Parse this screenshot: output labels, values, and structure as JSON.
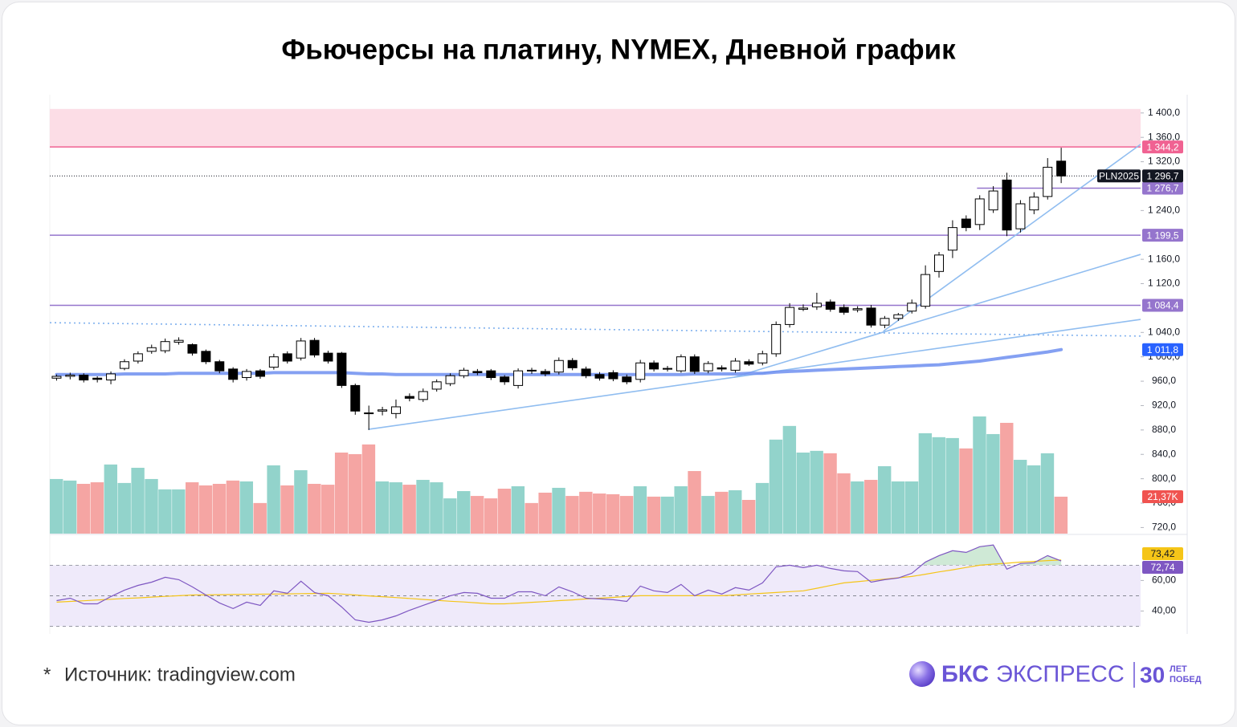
{
  "chart_data": {
    "type": "candlestick",
    "title": "Фьючерсы на платину, NYMEX, Дневной график",
    "xlim": [
      -0.5,
      79.85
    ],
    "ylim": [
      710,
      1430
    ],
    "yticks": [
      {
        "value": 720,
        "label": "720,0"
      },
      {
        "value": 760,
        "label": "760,0"
      },
      {
        "value": 800,
        "label": "800,0"
      },
      {
        "value": 840,
        "label": "840,0"
      },
      {
        "value": 880,
        "label": "880,0"
      },
      {
        "value": 920,
        "label": "920,0"
      },
      {
        "value": 960,
        "label": "960,0"
      },
      {
        "value": 1000,
        "label": "1 000,0"
      },
      {
        "value": 1040,
        "label": "1 040,0"
      },
      {
        "value": 1120,
        "label": "1 120,0"
      },
      {
        "value": 1160,
        "label": "1 160,0"
      },
      {
        "value": 1240,
        "label": "1 240,0"
      },
      {
        "value": 1320,
        "label": "1 320,0"
      },
      {
        "value": 1360,
        "label": "1 360,0"
      },
      {
        "value": 1400,
        "label": "1 400,0"
      }
    ],
    "up_color": "#ffffff",
    "down_color": "#000000",
    "open": [
      965,
      968,
      970,
      965,
      962,
      981,
      993,
      1009,
      1010,
      1024,
      1020,
      1009,
      992,
      980,
      966,
      977,
      983,
      1005,
      998,
      1027,
      1006,
      1006,
      953,
      908,
      911,
      907,
      935,
      930,
      947,
      956,
      969,
      976,
      977,
      967,
      953,
      978,
      976,
      975,
      994,
      980,
      971,
      974,
      967,
      963,
      990,
      980,
      977,
      1000,
      977,
      982,
      978,
      992,
      990,
      1005,
      1053,
      1078,
      1082,
      1090,
      1081,
      1077,
      1080,
      1052,
      1063,
      1075,
      1083,
      1140,
      1175,
      1226,
      1217,
      1241,
      1290,
      1210,
      1241,
      1263,
      1321
    ],
    "high": [
      971,
      974,
      973,
      968,
      976,
      996,
      1009,
      1020,
      1030,
      1032,
      1022,
      1012,
      995,
      983,
      980,
      980,
      1005,
      1009,
      1031,
      1031,
      1010,
      1008,
      956,
      920,
      918,
      930,
      940,
      948,
      963,
      973,
      982,
      980,
      980,
      970,
      981,
      982,
      980,
      999,
      998,
      984,
      975,
      978,
      971,
      995,
      994,
      985,
      1004,
      1004,
      993,
      986,
      998,
      996,
      1010,
      1058,
      1088,
      1086,
      1105,
      1094,
      1086,
      1083,
      1085,
      1067,
      1072,
      1094,
      1150,
      1172,
      1224,
      1232,
      1265,
      1280,
      1302,
      1257,
      1270,
      1326,
      1343
    ],
    "low": [
      961,
      963,
      958,
      958,
      955,
      978,
      989,
      1005,
      1006,
      1020,
      1002,
      988,
      973,
      958,
      961,
      964,
      979,
      989,
      994,
      999,
      989,
      949,
      905,
      880,
      904,
      899,
      927,
      926,
      943,
      952,
      965,
      970,
      962,
      954,
      948,
      972,
      968,
      971,
      978,
      965,
      961,
      960,
      955,
      958,
      976,
      976,
      974,
      972,
      973,
      976,
      974,
      985,
      986,
      1000,
      1048,
      1075,
      1077,
      1074,
      1069,
      1073,
      1048,
      1047,
      1059,
      1071,
      1079,
      1130,
      1162,
      1206,
      1208,
      1236,
      1198,
      1204,
      1234,
      1258,
      1285
    ],
    "close": [
      968,
      970,
      962,
      963,
      972,
      992,
      1005,
      1015,
      1025,
      1027,
      1006,
      992,
      977,
      963,
      976,
      968,
      1000,
      993,
      1026,
      1003,
      993,
      953,
      911,
      907,
      913,
      918,
      932,
      943,
      959,
      969,
      978,
      974,
      966,
      959,
      977,
      977,
      972,
      994,
      982,
      969,
      965,
      964,
      959,
      990,
      980,
      981,
      1000,
      976,
      989,
      980,
      993,
      988,
      1005,
      1053,
      1081,
      1080,
      1088,
      1078,
      1073,
      1079,
      1052,
      1063,
      1069,
      1088,
      1135,
      1167,
      1212,
      1212,
      1259,
      1272,
      1208,
      1251,
      1262,
      1311,
      1296.7
    ],
    "moving_average": {
      "color": "#6f8ff0",
      "values": [
        971,
        971,
        971,
        971,
        971,
        972,
        972,
        972,
        972,
        973,
        973,
        973,
        973,
        973,
        973,
        973,
        974,
        974,
        974,
        974,
        974,
        974,
        973,
        972,
        972,
        971,
        971,
        971,
        971,
        971,
        971,
        971,
        971,
        971,
        971,
        971,
        971,
        971,
        971,
        971,
        971,
        971,
        971,
        971,
        971,
        971,
        971,
        972,
        972,
        972,
        972,
        973,
        973,
        975,
        976,
        977,
        978,
        979,
        980,
        981,
        982,
        983,
        984,
        985,
        986,
        987,
        989,
        991,
        993,
        996,
        999,
        1002,
        1005,
        1008,
        1011.8
      ],
      "last_value_label": "1 011,8",
      "label_color": "#2962ff"
    },
    "zone": {
      "range": [
        1344.2,
        1406.6
      ],
      "color": "#fcdde6"
    },
    "levels": [
      {
        "value": 1344.2,
        "label": "1 344,2",
        "color": "#f06292",
        "from": -0.5
      },
      {
        "value": 1276.7,
        "label": "1 276,7",
        "color": "#9575cd",
        "from": 67.8
      },
      {
        "value": 1199.5,
        "label": "1 199,5",
        "color": "#9575cd",
        "from": -0.5
      },
      {
        "value": 1084.4,
        "label": "1 084,4",
        "color": "#9575cd",
        "from": -0.5
      }
    ],
    "last_price": {
      "value": 1296.7,
      "label": "1 296,7",
      "tag": "PLN2025",
      "color": "#131722"
    },
    "trendlines": [
      {
        "x": [
          22.96,
          79.85
        ],
        "y": [
          881,
          1061.4
        ],
        "color": "#90bdf0",
        "dashed": false
      },
      {
        "x": [
          49.9,
          79.85
        ],
        "y": [
          966.5,
          1168
        ],
        "color": "#90bdf0",
        "dashed": false
      },
      {
        "x": [
          60.9,
          79.85
        ],
        "y": [
          1042,
          1348.6
        ],
        "color": "#90bdf0",
        "dashed": false
      },
      {
        "x": [
          -0.5,
          79.85
        ],
        "y": [
          1056,
          1034
        ],
        "color": "#7fb0ee",
        "dashed": true
      }
    ],
    "volume": {
      "ylim": [
        0,
        254
      ],
      "up_color": "#92d3cb",
      "down_color": "#f5a5a3",
      "label_color": "#f05350",
      "values": [
        31.6,
        30.7,
        28.8,
        29.7,
        40.0,
        29.3,
        38.1,
        31.6,
        25.6,
        25.6,
        29.7,
        27.9,
        28.8,
        30.7,
        30.2,
        17.7,
        39.5,
        27.9,
        36.7,
        28.8,
        28.3,
        46.9,
        46.0,
        51.6,
        30.2,
        29.7,
        28.3,
        31.1,
        29.7,
        20.4,
        24.6,
        21.8,
        20.4,
        26.0,
        27.4,
        17.7,
        23.7,
        26.5,
        21.8,
        24.2,
        23.2,
        22.8,
        21.8,
        27.4,
        21.4,
        21.4,
        27.4,
        36.2,
        21.8,
        24.2,
        25.1,
        19.5,
        29.3,
        54.4,
        62.3,
        46.9,
        47.9,
        46.5,
        34.9,
        30.2,
        31.1,
        39.0,
        30.2,
        30.2,
        58.1,
        55.8,
        55.3,
        49.3,
        67.8,
        57.6,
        64.1,
        42.7,
        39.5,
        46.5,
        21.37
      ],
      "last_value_label": "21,37K"
    },
    "rsi": {
      "ylim": [
        25,
        87
      ],
      "yticks": [
        {
          "value": 40,
          "label": "40,00"
        },
        {
          "value": 60,
          "label": "60,00"
        }
      ],
      "bands": [
        30,
        50,
        70
      ],
      "band_color": "#efeafa",
      "fill_color": "#cfe9d6",
      "color": "#7e57c2",
      "values": [
        46.8,
        48.4,
        44.7,
        44.7,
        49.5,
        53.7,
        56.8,
        58.9,
        62.1,
        60.5,
        55.8,
        50.5,
        45.3,
        41.6,
        45.8,
        43.7,
        53.2,
        51.6,
        59.5,
        52.1,
        50.0,
        42.6,
        34.2,
        32.6,
        34.2,
        36.8,
        40.5,
        43.7,
        46.8,
        50.0,
        52.1,
        51.6,
        48.4,
        48.4,
        52.6,
        52.6,
        50.0,
        55.8,
        52.6,
        48.4,
        47.9,
        47.4,
        46.3,
        56.3,
        53.2,
        52.1,
        57.4,
        50.0,
        53.7,
        51.1,
        55.3,
        53.7,
        58.4,
        68.9,
        70.0,
        68.4,
        70.0,
        67.9,
        66.3,
        65.8,
        58.9,
        60.5,
        61.6,
        64.7,
        72.1,
        76.3,
        79.5,
        78.4,
        82.1,
        83.2,
        67.4,
        71.1,
        71.6,
        76.3,
        72.74
      ],
      "last_value_label": "72,74",
      "signal": {
        "color": "#f5c518",
        "label_text_color": "#131722",
        "last_value_label": "73,42",
        "values": [
          45.8,
          46.3,
          46.7,
          47.2,
          47.7,
          48.2,
          48.6,
          49.1,
          49.6,
          50.0,
          50.5,
          50.6,
          50.7,
          50.8,
          50.9,
          51.0,
          51.1,
          51.2,
          51.4,
          51.5,
          51.6,
          51.1,
          50.5,
          49.9,
          49.4,
          48.8,
          48.2,
          47.6,
          47.0,
          46.4,
          45.9,
          45.3,
          44.7,
          44.7,
          45.2,
          45.7,
          46.2,
          46.8,
          47.3,
          47.9,
          48.4,
          48.9,
          49.5,
          50.0,
          50.0,
          50.0,
          50.0,
          50.0,
          50.0,
          50.0,
          50.5,
          51.1,
          51.6,
          52.1,
          52.7,
          53.2,
          54.9,
          56.7,
          58.4,
          59.2,
          60.1,
          60.9,
          61.8,
          62.6,
          64.1,
          65.6,
          67.0,
          68.5,
          70.0,
          70.7,
          71.3,
          72.0,
          72.5,
          73.0,
          73.42
        ]
      }
    }
  },
  "footer": {
    "mark": "*",
    "source": "Источник: tradingview.com"
  },
  "logo": {
    "brand": "БКС",
    "product": "ЭКСПРЕСС",
    "years": "30",
    "line1": "ЛЕТ",
    "line2": "ПОБЕД"
  }
}
